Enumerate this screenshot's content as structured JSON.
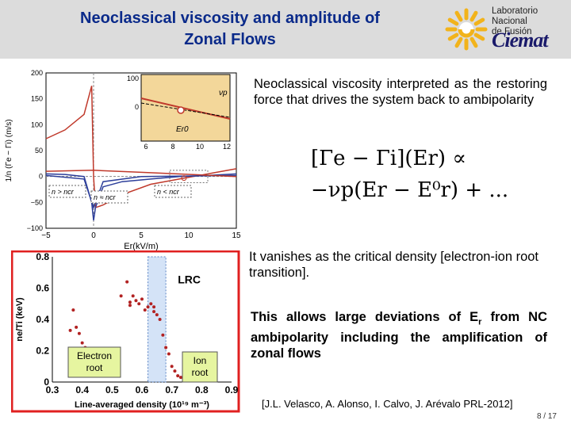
{
  "slide": {
    "title_line1": "Neoclassical viscosity and amplitude of",
    "title_line2": "Zonal Flows",
    "logo": {
      "line1": "Laboratorio Nacional",
      "line2": "de Fusión",
      "brand": "Ciemat",
      "sun_color": "#f2b31b",
      "brand_color": "#1a1a6a"
    },
    "text1": "Neoclassical viscosity interpreted as the restoring force that drives the system back to ambipolarity",
    "equation_line1": "[Γe − Γi](Er) ∝",
    "equation_line2": "−νp(Er − E⁰r) + ...",
    "text2": "It vanishes as the critical density [electron-ion root transition].",
    "text3_pre": "This allows large deviations of E",
    "text3_sub": "r",
    "text3_post": " from NC ambipolarity including the amplification of zonal flows",
    "reference": "[J.L. Velasco, A. Alonso, I. Calvo, J. Arévalo PRL-2012]",
    "page": "8 / 17",
    "accent_color": "#0a2a8a"
  },
  "chart_data": [
    {
      "type": "line",
      "xlabel": "Er(kV/m)",
      "ylabel": "1/n (Γe − Γi) (m/s)",
      "xlim": [
        -5,
        15
      ],
      "ylim": [
        -100,
        200
      ],
      "xticks": [
        "−5",
        "0",
        "5",
        "10",
        "15"
      ],
      "yticks": [
        "200",
        "150",
        "100",
        "50",
        "0",
        "−50",
        "−100"
      ],
      "series": [
        {
          "color": "#c0392b",
          "x": [
            -5,
            -3,
            -1,
            -0.2,
            0,
            0.2,
            1,
            3,
            6,
            9,
            12,
            15
          ],
          "y": [
            73,
            90,
            120,
            175,
            0,
            -60,
            -55,
            -35,
            -15,
            -5,
            5,
            15
          ]
        },
        {
          "color": "#2c3e9a",
          "x": [
            -5,
            -3,
            -1,
            -0.2,
            0,
            0.2,
            1,
            3,
            6,
            9,
            12,
            15
          ],
          "y": [
            5,
            4,
            0,
            -50,
            -85,
            -60,
            -20,
            -10,
            -5,
            0,
            2,
            5
          ]
        },
        {
          "color": "#2c3e9a",
          "x": [
            -5,
            -1,
            0,
            1,
            5,
            15
          ],
          "y": [
            2,
            -5,
            -60,
            -10,
            0,
            2
          ]
        },
        {
          "color": "#c0392b",
          "x": [
            -5,
            0,
            5,
            15
          ],
          "y": [
            10,
            12,
            8,
            0
          ]
        }
      ],
      "annotations": [
        "n > ncr",
        "n ≈ ncr",
        "n < ncr"
      ],
      "inset": {
        "xticks": [
          "6",
          "8",
          "10",
          "12"
        ],
        "yticks": [
          "100",
          "0"
        ],
        "labels": [
          "νp",
          "Er0"
        ]
      }
    },
    {
      "type": "scatter",
      "xlabel": "Line-averaged density (10¹⁹ m⁻³)",
      "ylabel": "ne/Ti (keV)",
      "xlim": [
        0.3,
        0.9
      ],
      "ylim": [
        0,
        0.8
      ],
      "xticks": [
        "0.3",
        "0.4",
        "0.5",
        "0.6",
        "0.7",
        "0.8",
        "0.9"
      ],
      "yticks": [
        "0.8",
        "0.6",
        "0.4",
        "0.2",
        "0"
      ],
      "label_lrc": "LRC",
      "label_electron": "Electron root",
      "label_ion": "Ion root",
      "points": [
        [
          0.36,
          0.33
        ],
        [
          0.37,
          0.46
        ],
        [
          0.38,
          0.35
        ],
        [
          0.39,
          0.31
        ],
        [
          0.4,
          0.25
        ],
        [
          0.41,
          0.22
        ],
        [
          0.53,
          0.55
        ],
        [
          0.55,
          0.64
        ],
        [
          0.56,
          0.51
        ],
        [
          0.56,
          0.49
        ],
        [
          0.57,
          0.55
        ],
        [
          0.58,
          0.52
        ],
        [
          0.59,
          0.5
        ],
        [
          0.6,
          0.53
        ],
        [
          0.61,
          0.46
        ],
        [
          0.62,
          0.48
        ],
        [
          0.63,
          0.5
        ],
        [
          0.64,
          0.45
        ],
        [
          0.64,
          0.48
        ],
        [
          0.65,
          0.43
        ],
        [
          0.66,
          0.4
        ],
        [
          0.67,
          0.3
        ],
        [
          0.68,
          0.22
        ],
        [
          0.69,
          0.18
        ],
        [
          0.7,
          0.1
        ],
        [
          0.71,
          0.07
        ],
        [
          0.72,
          0.04
        ],
        [
          0.73,
          0.03
        ],
        [
          0.74,
          0.06
        ]
      ],
      "point_color": "#b22222",
      "band": [
        0.62,
        0.68
      ],
      "band_color": "#a9c8f0"
    }
  ]
}
